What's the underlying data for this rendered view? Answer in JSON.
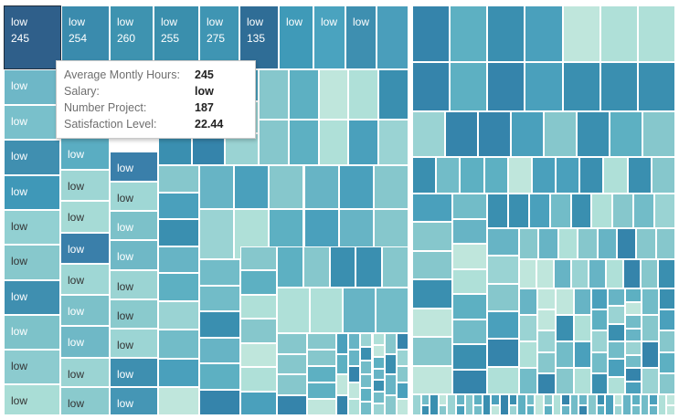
{
  "treemap": {
    "labeled_tiles": [
      {
        "label": "low",
        "value": "245",
        "color": "#2f5f8a",
        "selected": true
      },
      {
        "label": "low",
        "value": "254",
        "color": "#3a8bad"
      },
      {
        "label": "low",
        "value": "260",
        "color": "#3e93b0"
      },
      {
        "label": "low",
        "value": "255",
        "color": "#3a8fad"
      },
      {
        "label": "low",
        "value": "275",
        "color": "#3f95b3"
      },
      {
        "label": "low",
        "value": "135",
        "color": "#2f6d96"
      },
      {
        "label": "low",
        "value": "",
        "color": "#3f9ab8"
      },
      {
        "label": "low",
        "value": "",
        "color": "#4aa3bf"
      },
      {
        "label": "low",
        "value": "",
        "color": "#3e8fb0"
      },
      {
        "label": "low",
        "value": "",
        "color": "#4a9ebb"
      },
      {
        "label": "low",
        "value": "",
        "color": "#6eb7c7"
      },
      {
        "label": "low",
        "value": "",
        "color": "#79c0cb"
      },
      {
        "label": "low",
        "value": "",
        "color": "#408fb0"
      },
      {
        "label": "low",
        "value": "",
        "color": "#3f98b8"
      },
      {
        "label": "low",
        "value": "",
        "color": "#92d0d2"
      },
      {
        "label": "low",
        "value": "",
        "color": "#87c8cc"
      },
      {
        "label": "low",
        "value": "",
        "color": "#3f8fb0"
      },
      {
        "label": "low",
        "value": "",
        "color": "#7dc2c9"
      },
      {
        "label": "low",
        "value": "",
        "color": "#8ccbcf"
      },
      {
        "label": "low",
        "value": "",
        "color": "#a9ddd6"
      },
      {
        "label": "low",
        "value": "",
        "color": "#5aadc2"
      },
      {
        "label": "low",
        "value": "",
        "color": "#9ed6d4"
      },
      {
        "label": "low",
        "value": "",
        "color": "#a6dbd6"
      },
      {
        "label": "low",
        "value": "",
        "color": "#3a7faa"
      },
      {
        "label": "low",
        "value": "",
        "color": "#9fd7d5"
      },
      {
        "label": "low",
        "value": "",
        "color": "#7cc1c9"
      },
      {
        "label": "low",
        "value": "",
        "color": "#6fb8c6"
      },
      {
        "label": "low",
        "value": "",
        "color": "#9bd4d3"
      },
      {
        "label": "low",
        "value": "",
        "color": "#8acacd"
      },
      {
        "label": "low",
        "value": "",
        "color": "#9cd5d4"
      },
      {
        "label": "low",
        "value": "",
        "color": "#3e8fb0"
      },
      {
        "label": "low",
        "value": "",
        "color": "#4596b5"
      }
    ],
    "palette": [
      "#3a8fb0",
      "#4aa0bc",
      "#5db0c2",
      "#72bcc8",
      "#86c7cc",
      "#9ad3d3",
      "#afe0d8",
      "#bfe6dc",
      "#3584ab",
      "#67b4c5"
    ]
  },
  "tooltip": {
    "rows": [
      {
        "key": "Average Montly Hours:",
        "value": "245"
      },
      {
        "key": "Salary:",
        "value": "low"
      },
      {
        "key": "Number Project:",
        "value": "187"
      },
      {
        "key": "Satisfaction Level:",
        "value": "22.44"
      }
    ]
  }
}
